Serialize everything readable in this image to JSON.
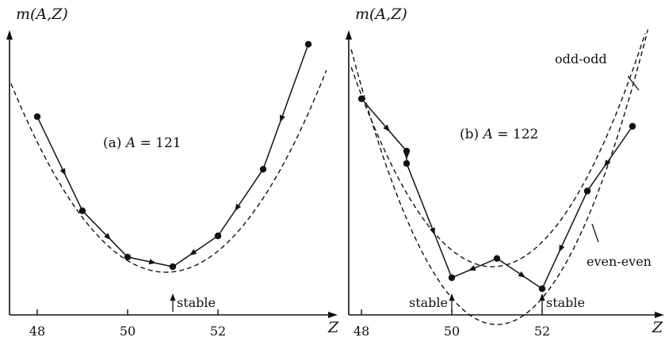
{
  "chart_data": [
    {
      "type": "scatter",
      "title_prefix": "(a)",
      "title_var": "A",
      "title_rest": " = 121",
      "ylabel": "m(A,Z)",
      "xlabel": "Z",
      "x_ticks": [
        48,
        50,
        52
      ],
      "xlim": [
        47.7,
        54.2
      ],
      "ylim": [
        0,
        10
      ],
      "curve_label": "",
      "series": [
        {
          "x": [
            48,
            49,
            50,
            51,
            52,
            53,
            54
          ],
          "y": [
            7.2,
            3.78,
            2.1,
            1.75,
            2.87,
            5.29,
            9.83
          ]
        }
      ],
      "parabola": {
        "vertex_x": 50.85,
        "vertex_y": 1.55,
        "curvature": 0.582
      },
      "annotations": [
        {
          "text": "stable",
          "x": 51
        }
      ]
    },
    {
      "type": "scatter",
      "title_prefix": "(b)",
      "title_var": "A",
      "title_rest": " = 122",
      "ylabel": "m(A,Z)",
      "xlabel": "Z",
      "x_ticks": [
        48,
        50,
        52
      ],
      "xlim": [
        47.7,
        54.2
      ],
      "ylim": [
        0,
        10
      ],
      "series": [
        {
          "name": "odd-odd",
          "x": [
            48,
            49,
            51,
            53,
            54
          ],
          "y": [
            7.85,
            5.95,
            2.05,
            4.5,
            6.85
          ]
        },
        {
          "name": "even-even",
          "x": [
            49,
            50,
            52,
            53
          ],
          "y": [
            5.5,
            1.35,
            0.95,
            4.5
          ]
        }
      ],
      "parabolas": [
        {
          "name": "odd-odd",
          "vertex_x": 50.9,
          "vertex_y": 1.75,
          "curvature": 0.741
        },
        {
          "name": "even-even",
          "vertex_x": 51.0,
          "vertex_y": -0.35,
          "curvature": 0.96
        }
      ],
      "annotations": [
        {
          "text": "stable",
          "x": 50
        },
        {
          "text": "stable",
          "x": 52
        }
      ]
    }
  ]
}
